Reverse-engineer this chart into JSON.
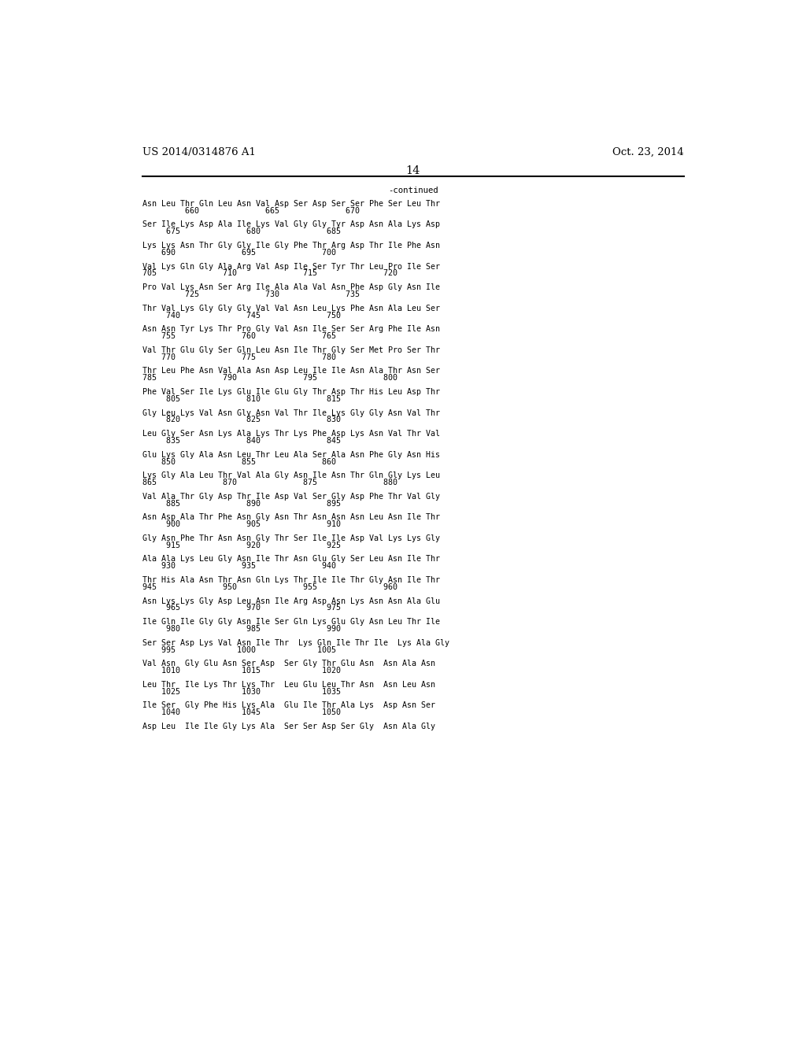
{
  "header_left": "US 2014/0314876 A1",
  "header_right": "Oct. 23, 2014",
  "page_number": "14",
  "continued_label": "-continued",
  "background_color": "#ffffff",
  "text_color": "#000000",
  "seq_font_size": 7.2,
  "header_font_size": 9.5,
  "sequence_blocks": [
    [
      "Asn Leu Thr Gln Leu Asn Val Asp Ser Asp Ser Ser Phe Ser Leu Thr",
      "         660              665              670"
    ],
    [
      "Ser Ile Lys Asp Ala Ile Lys Val Gly Gly Tyr Asp Asn Ala Lys Asp",
      "     675              680              685"
    ],
    [
      "Lys Lys Asn Thr Gly Gly Ile Gly Phe Thr Arg Asp Thr Ile Phe Asn",
      "    690              695              700"
    ],
    [
      "Val Lys Gln Gly Ala Arg Val Asp Ile Ser Tyr Thr Leu Pro Ile Ser",
      "705              710              715              720"
    ],
    [
      "Pro Val Lys Asn Ser Arg Ile Ala Ala Val Asn Phe Asp Gly Asn Ile",
      "         725              730              735"
    ],
    [
      "Thr Val Lys Gly Gly Gly Val Val Asn Leu Lys Phe Asn Ala Leu Ser",
      "     740              745              750"
    ],
    [
      "Asn Asn Tyr Lys Thr Pro Gly Val Asn Ile Ser Ser Arg Phe Ile Asn",
      "    755              760              765"
    ],
    [
      "Val Thr Glu Gly Ser Gln Leu Asn Ile Thr Gly Ser Met Pro Ser Thr",
      "    770              775              780"
    ],
    [
      "Thr Leu Phe Asn Val Ala Asn Asp Leu Ile Ile Asn Ala Thr Asn Ser",
      "785              790              795              800"
    ],
    [
      "Phe Val Ser Ile Lys Glu Ile Glu Gly Thr Asp Thr His Leu Asp Thr",
      "     805              810              815"
    ],
    [
      "Gly Leu Lys Val Asn Gly Asn Val Thr Ile Lys Gly Gly Asn Val Thr",
      "     820              825              830"
    ],
    [
      "Leu Gly Ser Asn Lys Ala Lys Thr Lys Phe Asp Lys Asn Val Thr Val",
      "     835              840              845"
    ],
    [
      "Glu Lys Gly Ala Asn Leu Thr Leu Ala Ser Ala Asn Phe Gly Asn His",
      "    850              855              860"
    ],
    [
      "Lys Gly Ala Leu Thr Val Ala Gly Asn Ile Asn Thr Gln Gly Lys Leu",
      "865              870              875              880"
    ],
    [
      "Val Ala Thr Gly Asp Thr Ile Asp Val Ser Gly Asp Phe Thr Val Gly",
      "     885              890              895"
    ],
    [
      "Asn Asp Ala Thr Phe Asn Gly Asn Thr Asn Asn Asn Leu Asn Ile Thr",
      "     900              905              910"
    ],
    [
      "Gly Asn Phe Thr Asn Asn Gly Thr Ser Ile Ile Asp Val Lys Lys Gly",
      "     915              920              925"
    ],
    [
      "Ala Ala Lys Leu Gly Asn Ile Thr Asn Glu Gly Ser Leu Asn Ile Thr",
      "    930              935              940"
    ],
    [
      "Thr His Ala Asn Thr Asn Gln Lys Thr Ile Ile Thr Gly Asn Ile Thr",
      "945              950              955              960"
    ],
    [
      "Asn Lys Lys Gly Asp Leu Asn Ile Arg Asp Asn Lys Asn Asn Ala Glu",
      "     965              970              975"
    ],
    [
      "Ile Gln Ile Gly Gly Asn Ile Ser Gln Lys Glu Gly Asn Leu Thr Ile",
      "     980              985              990"
    ],
    [
      "Ser Ser Asp Lys Val Asn Ile Thr  Lys Gln Ile Thr Ile  Lys Ala Gly",
      "    995             1000             1005"
    ],
    [
      "Val Asn  Gly Glu Asn Ser Asp  Ser Gly Thr Glu Asn  Asn Ala Asn",
      "    1010             1015             1020"
    ],
    [
      "Leu Thr  Ile Lys Thr Lys Thr  Leu Glu Leu Thr Asn  Asn Leu Asn",
      "    1025             1030             1035"
    ],
    [
      "Ile Ser  Gly Phe His Lys Ala  Glu Ile Thr Ala Lys  Asp Asn Ser",
      "    1040             1045             1050"
    ],
    [
      "Asp Leu  Ile Ile Gly Lys Ala  Ser Ser Asp Ser Gly  Asn Ala Gly",
      ""
    ]
  ]
}
